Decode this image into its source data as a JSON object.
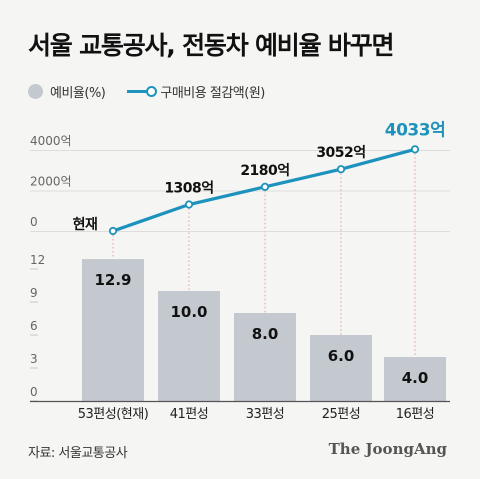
{
  "title": "서울 교통공사, 전동차 예비율 바꾸면",
  "legend": {
    "ratio_label": "예비율(%)",
    "saving_label": "구매비용 절감액(원)"
  },
  "colors": {
    "bar": "#c3c9cf",
    "line": "#1c92bd",
    "guide": "#e59aa0",
    "axis": "#555555",
    "highlight": "#1c92bd"
  },
  "chart_data": [
    {
      "type": "line",
      "title": "",
      "categories": [
        "53편성(현재)",
        "41편성",
        "33편성",
        "25편성",
        "16편성"
      ],
      "series": [
        {
          "name": "구매비용 절감액(원)",
          "values": [
            0,
            1308,
            2180,
            3052,
            4033
          ]
        }
      ],
      "data_labels": [
        "현재",
        "1308억",
        "2180억",
        "3052억",
        "4033억"
      ],
      "yticks": [
        "4000억",
        "2000억",
        "0"
      ],
      "ylim": [
        0,
        4000
      ],
      "grid": false
    },
    {
      "type": "bar",
      "title": "",
      "categories": [
        "53편성(현재)",
        "41편성",
        "33편성",
        "25편성",
        "16편성"
      ],
      "series": [
        {
          "name": "예비율(%)",
          "values": [
            12.9,
            10.0,
            8.0,
            6.0,
            4.0
          ]
        }
      ],
      "data_labels": [
        "12.9",
        "10.0",
        "8.0",
        "6.0",
        "4.0"
      ],
      "yticks": [
        "12",
        "9",
        "6",
        "3",
        "0"
      ],
      "ylim": [
        0,
        12
      ],
      "grid": false
    }
  ],
  "source": "자료: 서울교통공사",
  "brand": "The JoongAng"
}
